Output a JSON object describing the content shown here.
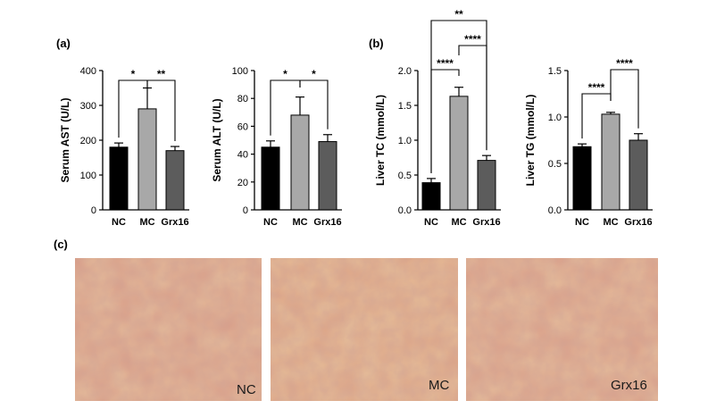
{
  "panel_labels": {
    "a": "(a)",
    "b": "(b)",
    "c": "(c)"
  },
  "colors": {
    "NC": "#000000",
    "MC": "#a8a8a8",
    "Grx16": "#5c5c5c"
  },
  "chart_data": [
    {
      "id": "ast",
      "type": "bar",
      "ylabel": "Serum AST (U/L)",
      "categories": [
        "NC",
        "MC",
        "Grx16"
      ],
      "values": [
        180,
        290,
        170
      ],
      "errors": [
        12,
        60,
        12
      ],
      "ylim": [
        0,
        400
      ],
      "yticks": [
        0,
        100,
        200,
        300,
        400
      ],
      "significance": [
        {
          "pair": [
            0,
            1
          ],
          "label": "*"
        },
        {
          "pair": [
            1,
            2
          ],
          "label": "**"
        }
      ]
    },
    {
      "id": "alt",
      "type": "bar",
      "ylabel": "Serum ALT (U/L)",
      "categories": [
        "NC",
        "MC",
        "Grx16"
      ],
      "values": [
        45,
        68,
        49
      ],
      "errors": [
        4.5,
        13,
        5
      ],
      "ylim": [
        0,
        100
      ],
      "yticks": [
        0,
        20,
        40,
        60,
        80,
        100
      ],
      "significance": [
        {
          "pair": [
            0,
            1
          ],
          "label": "*"
        },
        {
          "pair": [
            1,
            2
          ],
          "label": "*"
        }
      ]
    },
    {
      "id": "tc",
      "type": "bar",
      "ylabel": "Liver TC (mmol/L)",
      "categories": [
        "NC",
        "MC",
        "Grx16"
      ],
      "values": [
        0.39,
        1.63,
        0.71
      ],
      "errors": [
        0.06,
        0.13,
        0.07
      ],
      "ylim": [
        0,
        2.0
      ],
      "yticks": [
        "0.0",
        "0.5",
        "1.0",
        "1.5",
        "2.0"
      ],
      "significance": [
        {
          "pair": [
            0,
            1
          ],
          "label": "****"
        },
        {
          "pair": [
            1,
            2
          ],
          "label": "****"
        },
        {
          "pair": [
            0,
            2
          ],
          "label": "**"
        }
      ]
    },
    {
      "id": "tg",
      "type": "bar",
      "ylabel": "Liver TG (mmol/L)",
      "categories": [
        "NC",
        "MC",
        "Grx16"
      ],
      "values": [
        0.68,
        1.03,
        0.75
      ],
      "errors": [
        0.03,
        0.02,
        0.07
      ],
      "ylim": [
        0,
        1.5
      ],
      "yticks": [
        "0.0",
        "0.5",
        "1.0",
        "1.5"
      ],
      "significance": [
        {
          "pair": [
            0,
            1
          ],
          "label": "****"
        },
        {
          "pair": [
            1,
            2
          ],
          "label": "****"
        }
      ]
    }
  ],
  "micrographs": [
    {
      "label": "NC"
    },
    {
      "label": "MC"
    },
    {
      "label": "Grx16"
    }
  ]
}
